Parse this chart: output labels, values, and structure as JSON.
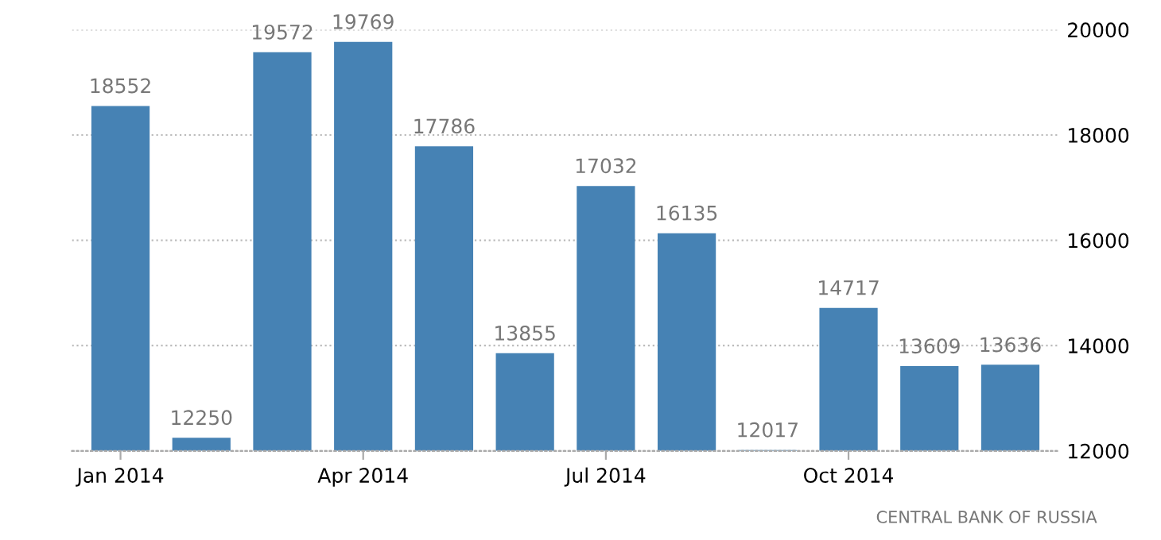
{
  "chart_data": {
    "type": "bar",
    "categories": [
      "Jan 2014",
      null,
      null,
      "Apr 2014",
      null,
      null,
      "Jul 2014",
      null,
      null,
      "Oct 2014",
      null,
      null
    ],
    "values": [
      18552,
      12250,
      19572,
      19769,
      17786,
      13855,
      17032,
      16135,
      12017,
      14717,
      13609,
      13636
    ],
    "color": "#4682b4",
    "data_labels": true,
    "ylim": [
      12000,
      20000
    ],
    "yticks": [
      12000,
      14000,
      16000,
      18000,
      20000
    ],
    "grid": "y",
    "annotations": [
      "CENTRAL BANK OF RUSSIA"
    ]
  }
}
